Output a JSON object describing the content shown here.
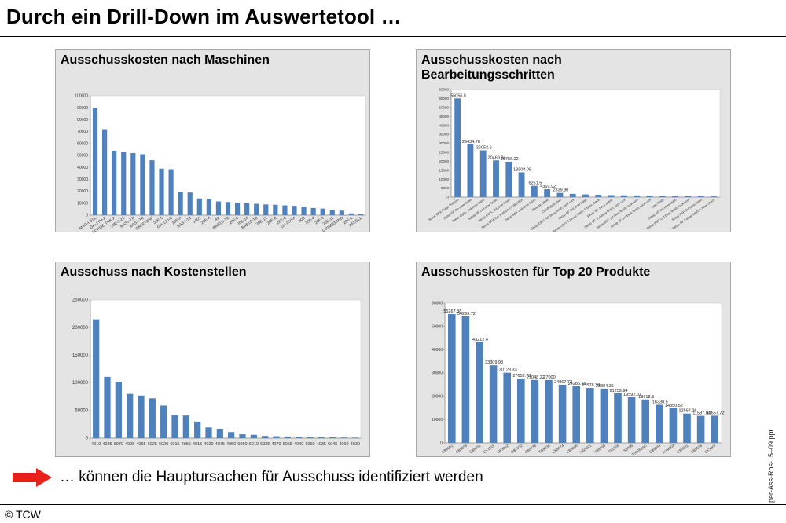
{
  "page": {
    "title": "Durch ein Drill-Down im Auswertetool …",
    "conclusion": "… können die Hauptursachen für Ausschuss identifiziert werden",
    "footer": "© TCW",
    "side_label": "per-Ass-Ros-15–09.ppt",
    "bar_color": "#4f81bd",
    "arrow_color": "#e8211b"
  },
  "chart_data": [
    {
      "id": "maschinen",
      "type": "bar",
      "title": "Ausschusskosten nach Maschinen",
      "categories": [
        "MAG-CELL",
        "GH-1TH-A",
        "FORGE-TRK-A",
        "20E-5-2S",
        "BAS1-TB",
        "BAS1-TB",
        "GRND-BRF",
        "20E-1",
        "GH-120-B",
        "20E-A",
        "BAS1-TB",
        "1401",
        "20E-4",
        "4A",
        "BAS1S-TB",
        "20E-7",
        "20E-14",
        "BAS1S-TB",
        "20E-12",
        "20E-B",
        "20E-6",
        "GH-250-A",
        "50B",
        "20E-8",
        "20E-9",
        "20E-11",
        "GRINDGRND",
        "20E-1",
        "AFCELL"
      ],
      "values": [
        90000,
        72000,
        54000,
        53000,
        52000,
        51000,
        46000,
        39000,
        38500,
        19500,
        19000,
        14000,
        13500,
        11500,
        11000,
        10500,
        10000,
        9500,
        9000,
        8700,
        8200,
        7800,
        7200,
        6000,
        5500,
        4500,
        3800,
        1500,
        800
      ],
      "ylim": [
        0,
        100000
      ],
      "ytick_step": 10000,
      "xlabel": "",
      "ylabel": ""
    },
    {
      "id": "bearbeitung",
      "type": "bar",
      "title": "Ausschusskosten nach Bearbeitungsschritten",
      "categories": [
        "Setup OFA Forge Preform",
        "Setup SF 4th blow finish",
        "Setup CBFL 2nd blow finish",
        "Setup SF 2nd blow finish",
        "Setup CBFL 3rd blow finish",
        "Setup OFA Bar Preform (TUB1H50)",
        "Setup BSF 2nd blow finish",
        "Rework rebolt",
        "Cutoff Operation",
        "Setup CBFL 4th blow finish, rock cool",
        "Setup SF 3rd blow finish",
        "Setup CBFL 5 blows finish, 5 blow check",
        "Setup SF, run 1 press",
        "Setup SF 2nd blow finish, rock cool",
        "Setup BSF 1st blow finish, rock cool",
        "Setup SF 3rd blow finish, rock cool",
        "Saw Rods",
        "Setup SF 3rd blow finish",
        "Setup BSF 2nd blow finish, rock cool",
        "Setup BSF 3rd blow finish",
        "Setup SF 3 blow finish, 5 blow check"
      ],
      "values": [
        55056.5,
        29434.76,
        26052.6,
        20469.84,
        19756.22,
        13804.05,
        6261.5,
        4369.92,
        2339.9,
        1800,
        1500,
        1300,
        1100,
        1000,
        950,
        900,
        700,
        600,
        500,
        450,
        400
      ],
      "data_labels": [
        "55056.5",
        "29434.76",
        "26052.6",
        "20469.84",
        "19756.22",
        "13804.05",
        "6261.5",
        "4369.92",
        "2339.90",
        "",
        "",
        "",
        "",
        "",
        "",
        "",
        "",
        "",
        "",
        "",
        ""
      ],
      "ylim": [
        0,
        60000
      ],
      "ytick_step": 5000,
      "xlabel": "",
      "ylabel": ""
    },
    {
      "id": "kostenstellen",
      "type": "bar",
      "title": "Ausschuss nach Kostenstellen",
      "categories": [
        "4010",
        "4025",
        "6070",
        "4005",
        "4065",
        "6025",
        "6020",
        "6015",
        "4055",
        "4015",
        "4020",
        "4075",
        "4050",
        "6050",
        "6010",
        "6025",
        "4070",
        "6055",
        "4040",
        "6060",
        "4035",
        "6045",
        "4060",
        "4030"
      ],
      "values": [
        215000,
        111000,
        102000,
        80000,
        77000,
        72000,
        59000,
        42000,
        41000,
        30000,
        19500,
        17000,
        11000,
        7000,
        6000,
        4000,
        3500,
        3000,
        2500,
        2000,
        1800,
        1500,
        1200,
        1000
      ],
      "ylim": [
        0,
        250000
      ],
      "ytick_step": 50000,
      "xlabel": "",
      "ylabel": ""
    },
    {
      "id": "produkte",
      "type": "bar",
      "title": "Ausschusskosten für Top 20 Produkte",
      "categories": [
        "CB8051",
        "CB8053",
        "CB8751",
        "CV1515",
        "DF3012",
        "GB7032",
        "CB9738",
        "TG8534",
        "CB8574",
        "CB5090",
        "NG5801",
        "VB8765",
        "TS1505",
        "SB795",
        "TS2052AC",
        "CB6584",
        "AUM003",
        "CB5581",
        "CB8538",
        "DF3007"
      ],
      "values": [
        55267.38,
        54299.72,
        43212.4,
        33309.93,
        30123.33,
        27653.73,
        27048.22,
        27000,
        24967.72,
        24286.19,
        23578.39,
        23304.35,
        21259.94,
        19592.07,
        18618.3,
        16330.5,
        14850.52,
        12567.26,
        11587.84,
        11657.72
      ],
      "data_labels": [
        "55267.38",
        "54299.72",
        "43212.4",
        "33309.93",
        "30123.33",
        "27653.73",
        "27048.22",
        "27000",
        "24967.72",
        "24286.19",
        "23578.39",
        "23304.35",
        "21259.94",
        "19592.07",
        "18618.3",
        "16330.5",
        "14850.52",
        "12567.26",
        "11587.84",
        "11657.72"
      ],
      "ylim": [
        0,
        60000
      ],
      "ytick_step": 10000,
      "xlabel": "",
      "ylabel": ""
    }
  ]
}
